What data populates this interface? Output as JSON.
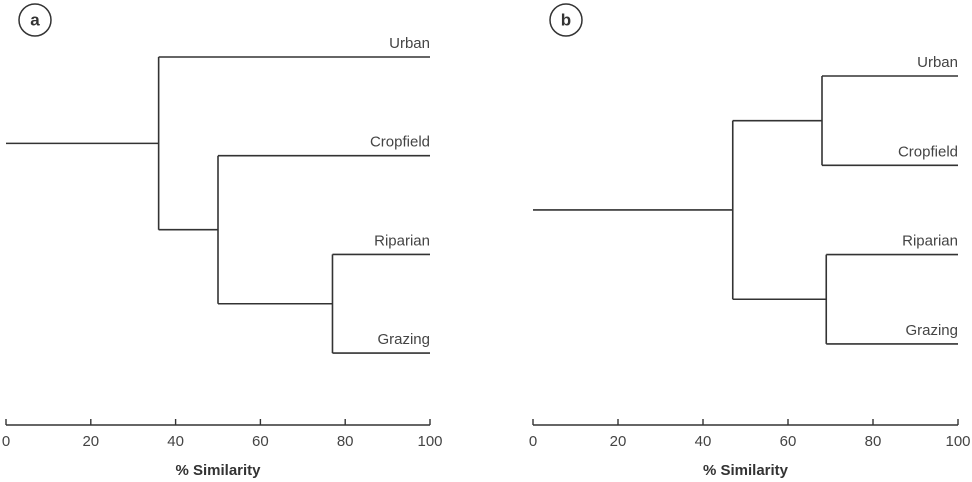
{
  "chart_data": [
    {
      "type": "dendrogram",
      "panel": "a",
      "xlabel": "% Similarity",
      "xlim": [
        0,
        100
      ],
      "xticks": [
        0,
        20,
        40,
        60,
        80,
        100
      ],
      "tree": {
        "height": 36,
        "children": [
          {
            "label": "Urban"
          },
          {
            "height": 50,
            "children": [
              {
                "label": "Cropfield"
              },
              {
                "height": 77,
                "children": [
                  {
                    "label": "Riparian"
                  },
                  {
                    "label": "Grazing"
                  }
                ]
              }
            ]
          }
        ]
      }
    },
    {
      "type": "dendrogram",
      "panel": "b",
      "xlabel": "% Similarity",
      "xlim": [
        0,
        100
      ],
      "xticks": [
        0,
        20,
        40,
        60,
        80,
        100
      ],
      "tree": {
        "height": 47,
        "children": [
          {
            "height": 68,
            "children": [
              {
                "label": "Urban"
              },
              {
                "label": "Cropfield"
              }
            ]
          },
          {
            "height": 69,
            "children": [
              {
                "label": "Riparian"
              },
              {
                "label": "Grazing"
              }
            ]
          }
        ]
      }
    }
  ]
}
